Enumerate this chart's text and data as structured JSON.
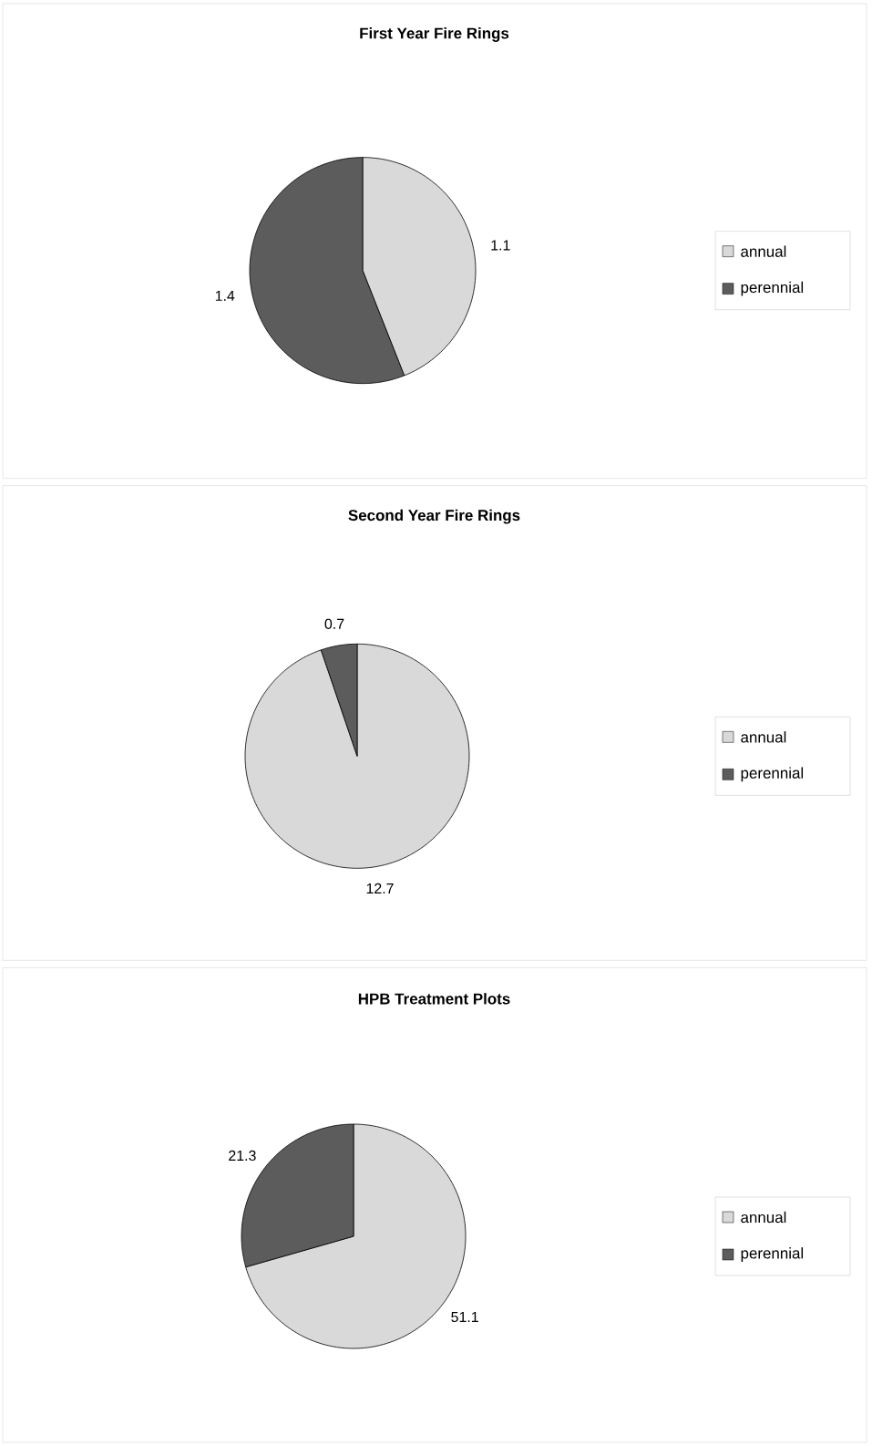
{
  "chart_data": [
    {
      "type": "pie",
      "title": "First Year Fire Rings",
      "categories": [
        "annual",
        "perennial"
      ],
      "values": [
        1.1,
        1.4
      ],
      "colors": [
        "#d9d9d9",
        "#5c5c5c"
      ],
      "data_labels": true,
      "legend": "right"
    },
    {
      "type": "pie",
      "title": "Second Year Fire Rings",
      "categories": [
        "annual",
        "perennial"
      ],
      "values": [
        12.7,
        0.7
      ],
      "colors": [
        "#d9d9d9",
        "#5c5c5c"
      ],
      "data_labels": true,
      "legend": "right"
    },
    {
      "type": "pie",
      "title": "HPB Treatment Plots",
      "categories": [
        "annual",
        "perennial"
      ],
      "values": [
        51.1,
        21.3
      ],
      "colors": [
        "#d9d9d9",
        "#5c5c5c"
      ],
      "data_labels": true,
      "legend": "right"
    }
  ]
}
